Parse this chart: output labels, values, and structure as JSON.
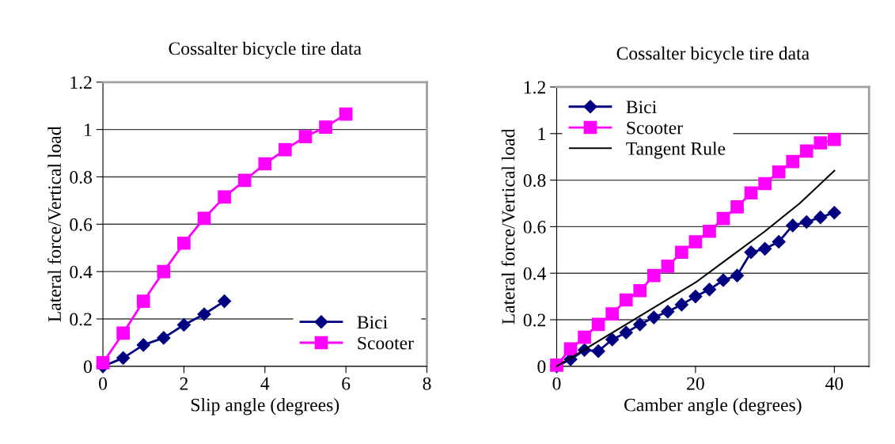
{
  "chart_data": [
    {
      "type": "line",
      "title": "Cossalter bicycle tire data",
      "xlabel": "Slip angle (degrees)",
      "ylabel": "Lateral force/Vertical load",
      "xlim": [
        0,
        8
      ],
      "xticks": [
        0,
        2,
        4,
        6,
        8
      ],
      "ylim": [
        0,
        1.2
      ],
      "yticks": [
        0,
        0.2,
        0.4,
        0.6,
        0.8,
        1,
        1.2
      ],
      "grid": "y",
      "legend": "lower right",
      "series": [
        {
          "name": "Bici",
          "color": "#000080",
          "marker": "diamond",
          "x": [
            0,
            0.5,
            1,
            1.5,
            2,
            2.5,
            3
          ],
          "values": [
            0,
            0.035,
            0.09,
            0.12,
            0.175,
            0.22,
            0.275
          ]
        },
        {
          "name": "Scooter",
          "color": "#ff00ff",
          "marker": "square",
          "x": [
            0,
            0.5,
            1,
            1.5,
            2,
            2.5,
            3,
            3.5,
            4,
            4.5,
            5,
            5.5,
            6
          ],
          "values": [
            0.015,
            0.14,
            0.275,
            0.4,
            0.52,
            0.625,
            0.715,
            0.785,
            0.855,
            0.915,
            0.97,
            1.01,
            1.065
          ]
        }
      ]
    },
    {
      "type": "line",
      "title": "Cossalter bicycle tire data",
      "xlabel": "Camber angle (degrees)",
      "ylabel": "Lateral force/Vertical load",
      "xlim": [
        0,
        45
      ],
      "xticks": [
        0,
        20,
        40
      ],
      "ylim": [
        0,
        1.2
      ],
      "yticks": [
        0,
        0.2,
        0.4,
        0.6,
        0.8,
        1,
        1.2
      ],
      "grid": "y",
      "legend": "upper left",
      "series": [
        {
          "name": "Bici",
          "color": "#000080",
          "marker": "diamond",
          "x": [
            0,
            2,
            4,
            6,
            8,
            10,
            12,
            14,
            16,
            18,
            20,
            22,
            24,
            26,
            28,
            30,
            32,
            34,
            36,
            38,
            40
          ],
          "values": [
            0,
            0.03,
            0.07,
            0.065,
            0.115,
            0.145,
            0.18,
            0.21,
            0.235,
            0.265,
            0.3,
            0.33,
            0.37,
            0.39,
            0.49,
            0.505,
            0.535,
            0.605,
            0.62,
            0.64,
            0.66
          ]
        },
        {
          "name": "Scooter",
          "color": "#ff00ff",
          "marker": "square",
          "x": [
            0,
            2,
            4,
            6,
            8,
            10,
            12,
            14,
            16,
            18,
            20,
            22,
            24,
            26,
            28,
            30,
            32,
            34,
            36,
            38,
            40
          ],
          "values": [
            0.005,
            0.075,
            0.125,
            0.18,
            0.225,
            0.285,
            0.325,
            0.39,
            0.43,
            0.49,
            0.535,
            0.58,
            0.635,
            0.685,
            0.745,
            0.785,
            0.835,
            0.88,
            0.925,
            0.96,
            0.975
          ]
        },
        {
          "name": "Tangent Rule",
          "color": "#000000",
          "marker": "none",
          "x": [
            0,
            5,
            10,
            15,
            20,
            25,
            30,
            35,
            40
          ],
          "values": [
            0,
            0.09,
            0.18,
            0.27,
            0.36,
            0.47,
            0.58,
            0.7,
            0.84
          ]
        }
      ]
    }
  ]
}
